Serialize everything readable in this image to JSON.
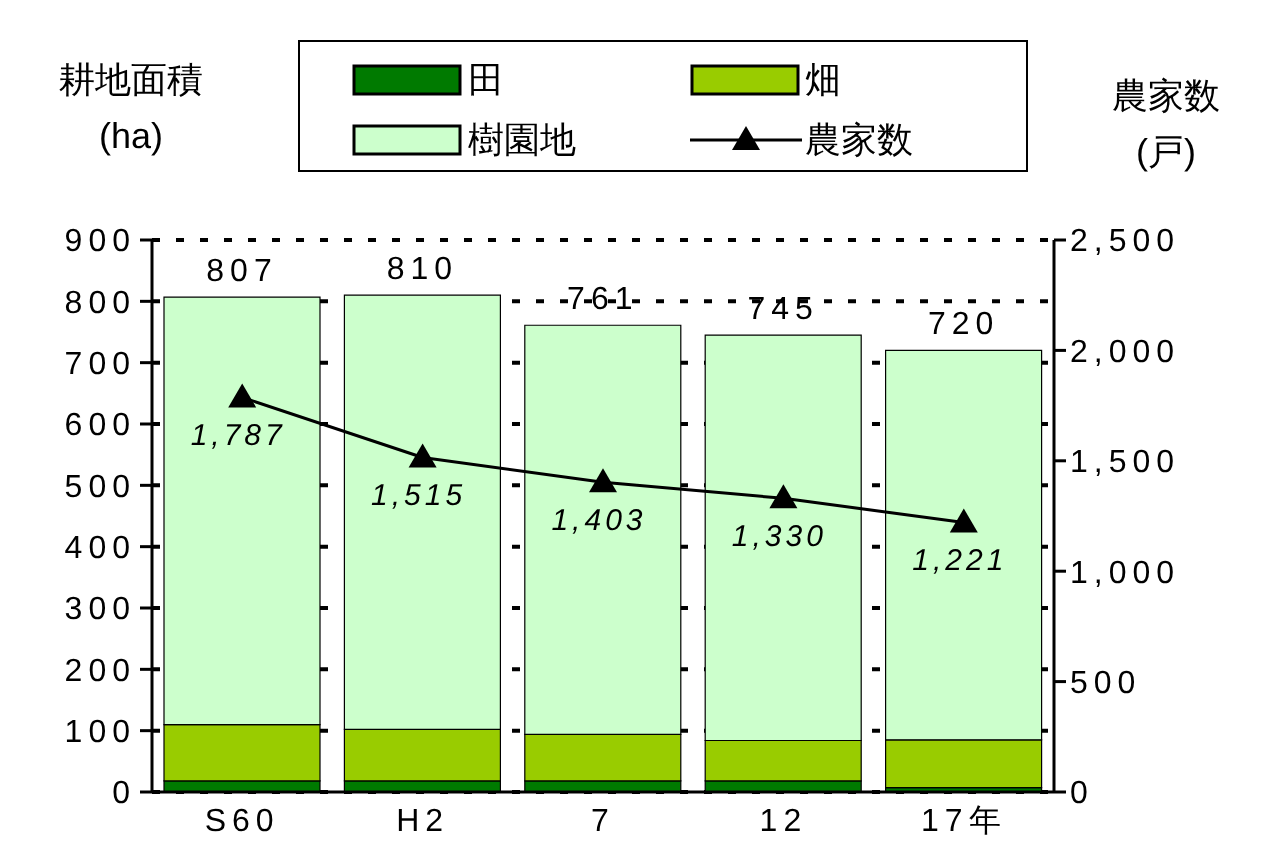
{
  "chart_data": {
    "type": "bar",
    "stacked": true,
    "ylabel": "耕地面積\n(ha)",
    "y2label": "農家数\n(戸)",
    "categories": [
      "S60",
      "H2",
      "7",
      "12",
      "17年"
    ],
    "series": [
      {
        "name": "田",
        "color": "#007a00",
        "values": [
          18,
          18,
          18,
          18,
          7
        ]
      },
      {
        "name": "畑",
        "color": "#99cc00",
        "values": [
          92,
          84,
          76,
          66,
          78
        ]
      },
      {
        "name": "樹園地",
        "color": "#ccffcc",
        "values": [
          697,
          708,
          667,
          661,
          635
        ]
      },
      {
        "name": "農家数",
        "type": "line",
        "axis": "y2",
        "color": "#000000",
        "marker": "triangle",
        "values": [
          1787,
          1515,
          1403,
          1330,
          1221
        ],
        "value_labels": [
          "1,787",
          "1,515",
          "1,403",
          "1,330",
          "1,221"
        ]
      }
    ],
    "totals": [
      "807",
      "810",
      "761",
      "745",
      "720"
    ],
    "ylim": [
      0,
      900
    ],
    "yticks": [
      0,
      100,
      200,
      300,
      400,
      500,
      600,
      700,
      800,
      900
    ],
    "y2lim": [
      0,
      2500
    ],
    "y2ticks": [
      0,
      500,
      {
        "value": 1000,
        "label": "1,000"
      },
      {
        "value": 1500,
        "label": "1,500"
      },
      {
        "value": 2000,
        "label": "2,000"
      },
      {
        "value": 2500,
        "label": "2,500"
      }
    ],
    "grid": "y",
    "legend": "top"
  }
}
